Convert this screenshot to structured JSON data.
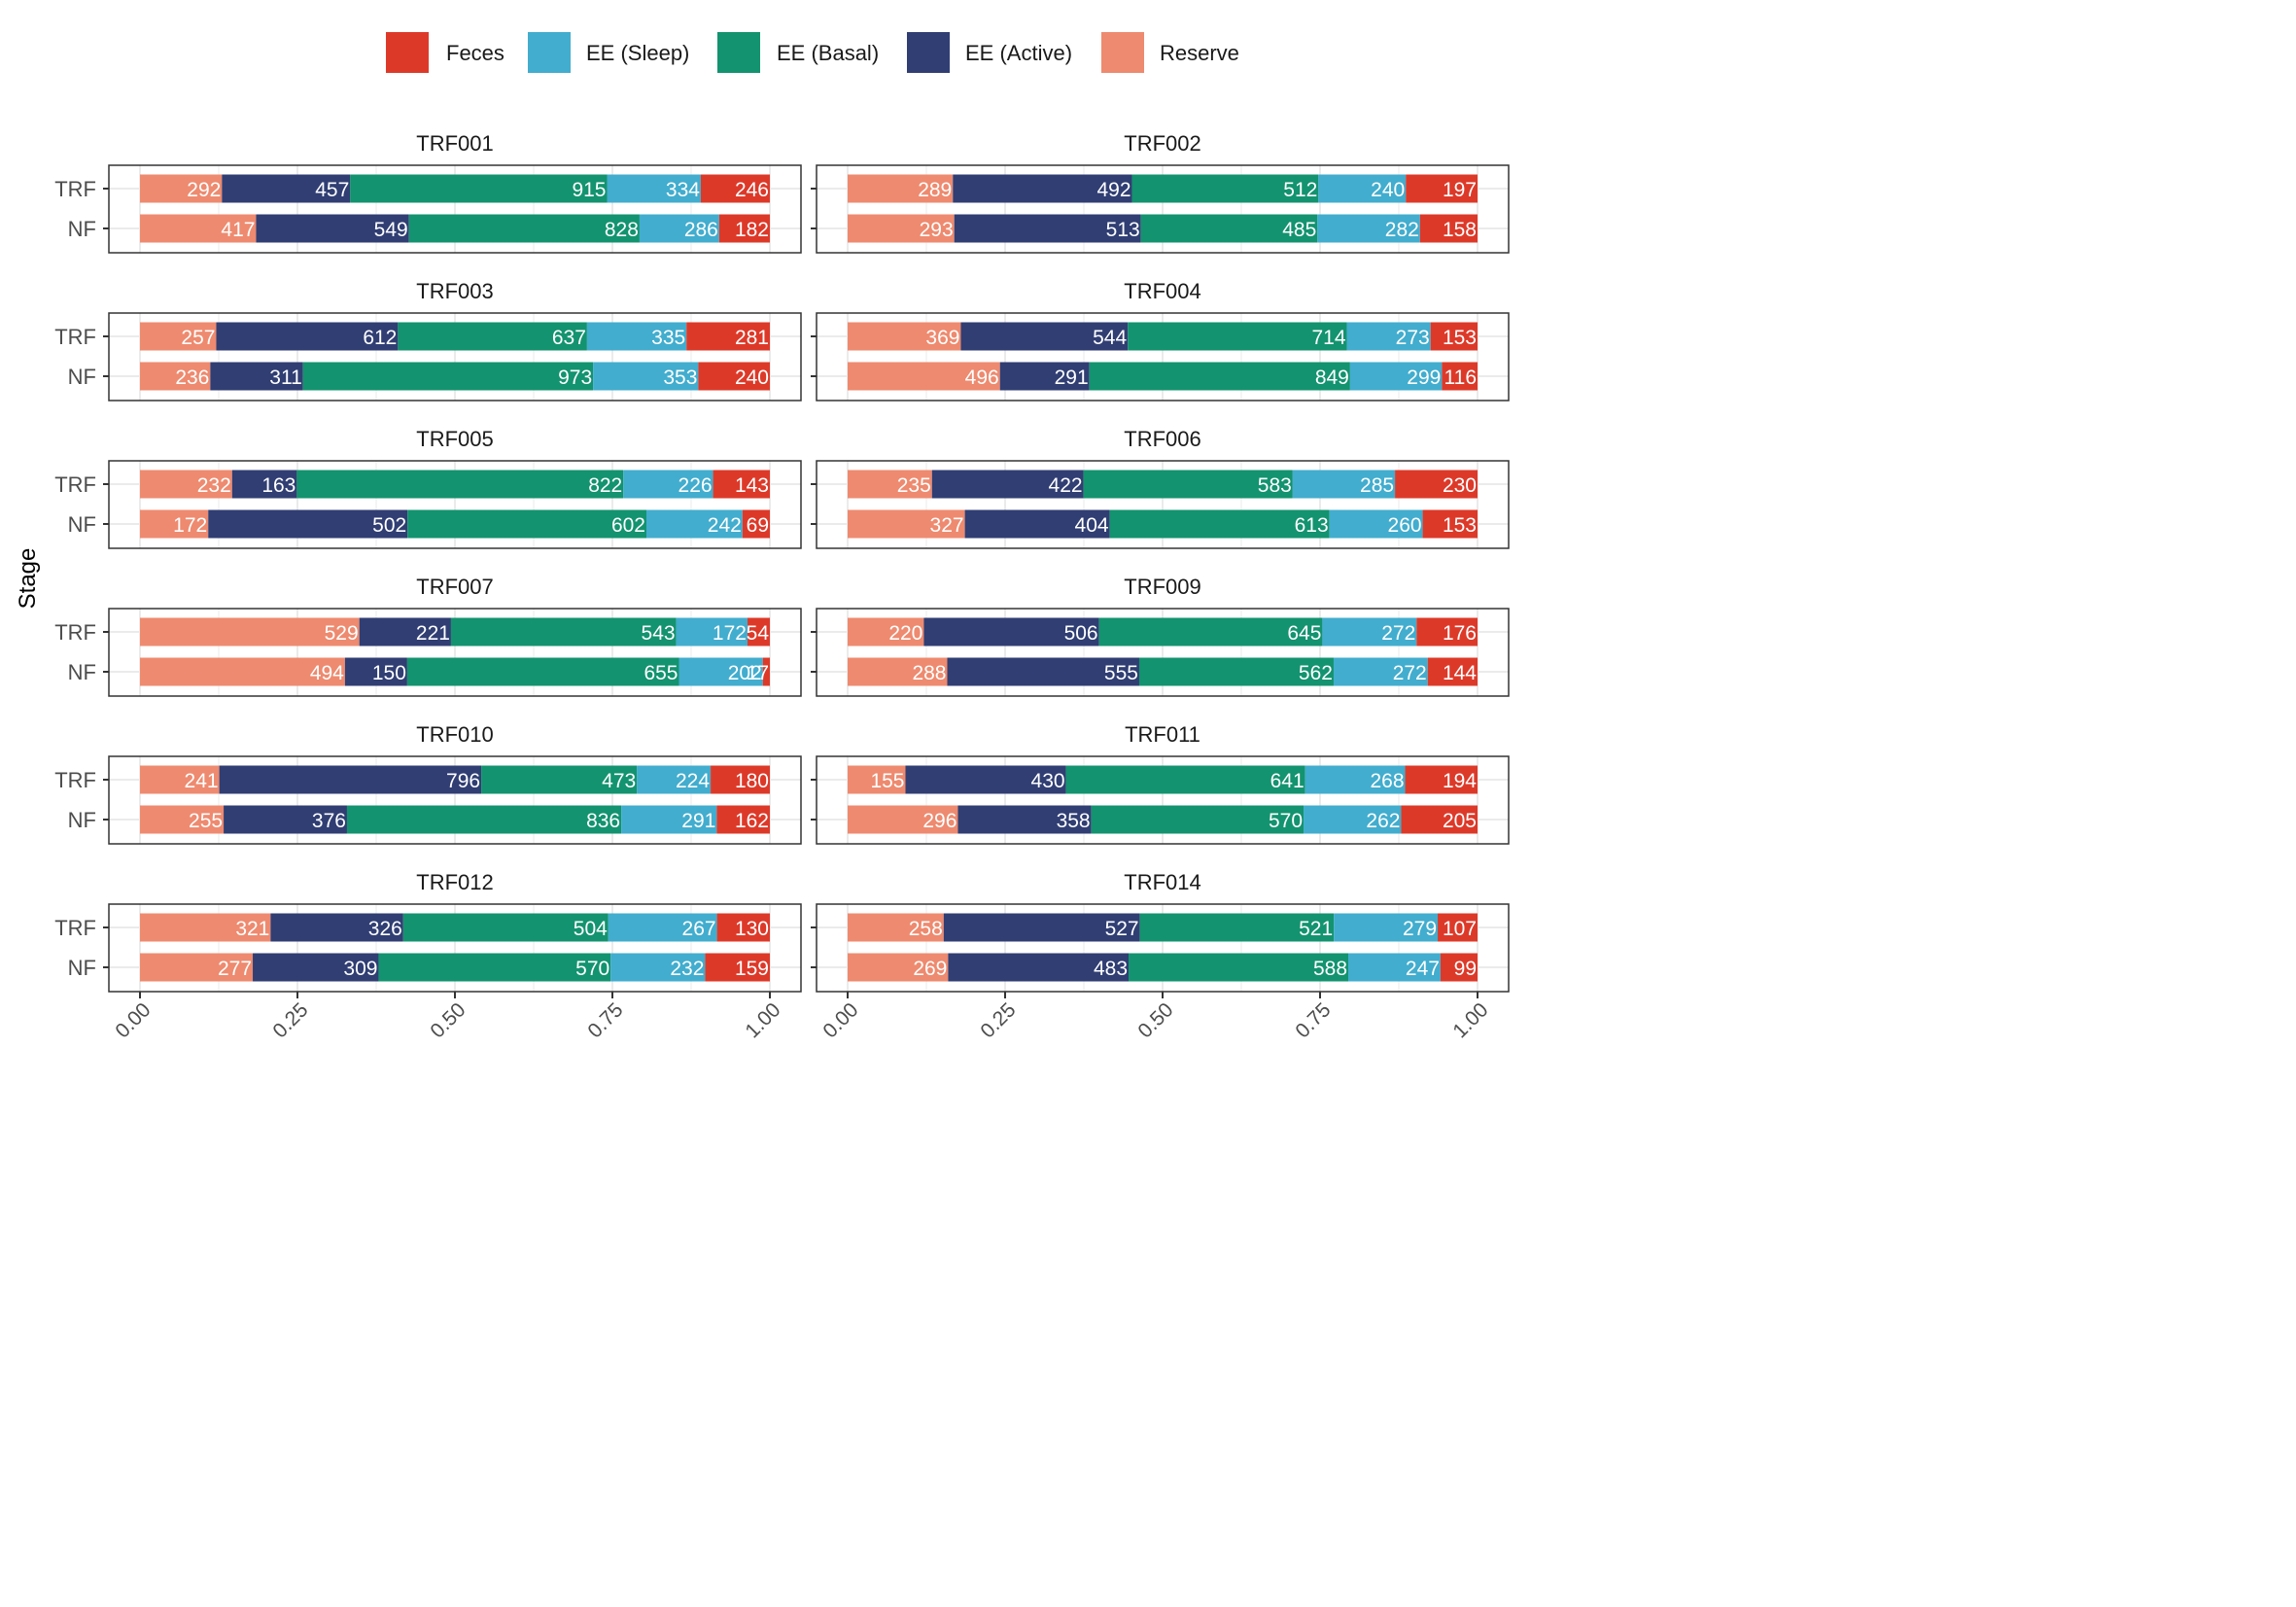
{
  "colors": {
    "Feces": "#DD3929",
    "EE (Sleep)": "#42ADCE",
    "EE (Basal)": "#13936F",
    "EE (Active)": "#303E73",
    "Reserve": "#EE8A6F",
    "grid": "#EBEBEB",
    "panel_border": "#333333",
    "label_text": "#ffffff"
  },
  "chart_data": {
    "type": "bar",
    "orientation": "horizontal",
    "stacking": "fill",
    "ylabel": "Stage",
    "xlabel": "",
    "xlim": [
      0,
      1
    ],
    "x_ticks": [
      "0.00",
      "0.25",
      "0.50",
      "0.75",
      "1.00"
    ],
    "x_tick_values": [
      0,
      0.25,
      0.5,
      0.75,
      1
    ],
    "grid": true,
    "legend_position": "top",
    "legend": [
      "Feces",
      "EE (Sleep)",
      "EE (Basal)",
      "EE (Active)",
      "Reserve"
    ],
    "stack_order": [
      "Reserve",
      "EE (Active)",
      "EE (Basal)",
      "EE (Sleep)",
      "Feces"
    ],
    "categories": [
      "TRF",
      "NF"
    ],
    "panels": [
      {
        "title": "TRF001",
        "bars": [
          {
            "stage": "TRF",
            "values": [
              292,
              457,
              915,
              334,
              246
            ]
          },
          {
            "stage": "NF",
            "values": [
              417,
              549,
              828,
              286,
              182
            ]
          }
        ]
      },
      {
        "title": "TRF002",
        "bars": [
          {
            "stage": "TRF",
            "values": [
              289,
              492,
              512,
              240,
              197
            ]
          },
          {
            "stage": "NF",
            "values": [
              293,
              513,
              485,
              282,
              158
            ]
          }
        ]
      },
      {
        "title": "TRF003",
        "bars": [
          {
            "stage": "TRF",
            "values": [
              257,
              612,
              637,
              335,
              281
            ]
          },
          {
            "stage": "NF",
            "values": [
              236,
              311,
              973,
              353,
              240
            ]
          }
        ]
      },
      {
        "title": "TRF004",
        "bars": [
          {
            "stage": "TRF",
            "values": [
              369,
              544,
              714,
              273,
              153
            ]
          },
          {
            "stage": "NF",
            "values": [
              496,
              291,
              849,
              299,
              116
            ]
          }
        ]
      },
      {
        "title": "TRF005",
        "bars": [
          {
            "stage": "TRF",
            "values": [
              232,
              163,
              822,
              226,
              143
            ]
          },
          {
            "stage": "NF",
            "values": [
              172,
              502,
              602,
              242,
              69
            ]
          }
        ]
      },
      {
        "title": "TRF006",
        "bars": [
          {
            "stage": "TRF",
            "values": [
              235,
              422,
              583,
              285,
              230
            ]
          },
          {
            "stage": "NF",
            "values": [
              327,
              404,
              613,
              260,
              153
            ]
          }
        ]
      },
      {
        "title": "TRF007",
        "bars": [
          {
            "stage": "TRF",
            "values": [
              529,
              221,
              543,
              172,
              54
            ]
          },
          {
            "stage": "NF",
            "values": [
              494,
              150,
              655,
              202,
              17
            ]
          }
        ]
      },
      {
        "title": "TRF009",
        "bars": [
          {
            "stage": "TRF",
            "values": [
              220,
              506,
              645,
              272,
              176
            ]
          },
          {
            "stage": "NF",
            "values": [
              288,
              555,
              562,
              272,
              144
            ]
          }
        ]
      },
      {
        "title": "TRF010",
        "bars": [
          {
            "stage": "TRF",
            "values": [
              241,
              796,
              473,
              224,
              180
            ]
          },
          {
            "stage": "NF",
            "values": [
              255,
              376,
              836,
              291,
              162
            ]
          }
        ]
      },
      {
        "title": "TRF011",
        "bars": [
          {
            "stage": "TRF",
            "values": [
              155,
              430,
              641,
              268,
              194
            ]
          },
          {
            "stage": "NF",
            "values": [
              296,
              358,
              570,
              262,
              205
            ]
          }
        ]
      },
      {
        "title": "TRF012",
        "bars": [
          {
            "stage": "TRF",
            "values": [
              321,
              326,
              504,
              267,
              130
            ]
          },
          {
            "stage": "NF",
            "values": [
              277,
              309,
              570,
              232,
              159
            ]
          }
        ]
      },
      {
        "title": "TRF014",
        "bars": [
          {
            "stage": "TRF",
            "values": [
              258,
              527,
              521,
              279,
              107
            ]
          },
          {
            "stage": "NF",
            "values": [
              269,
              483,
              588,
              247,
              99
            ]
          }
        ]
      }
    ]
  }
}
